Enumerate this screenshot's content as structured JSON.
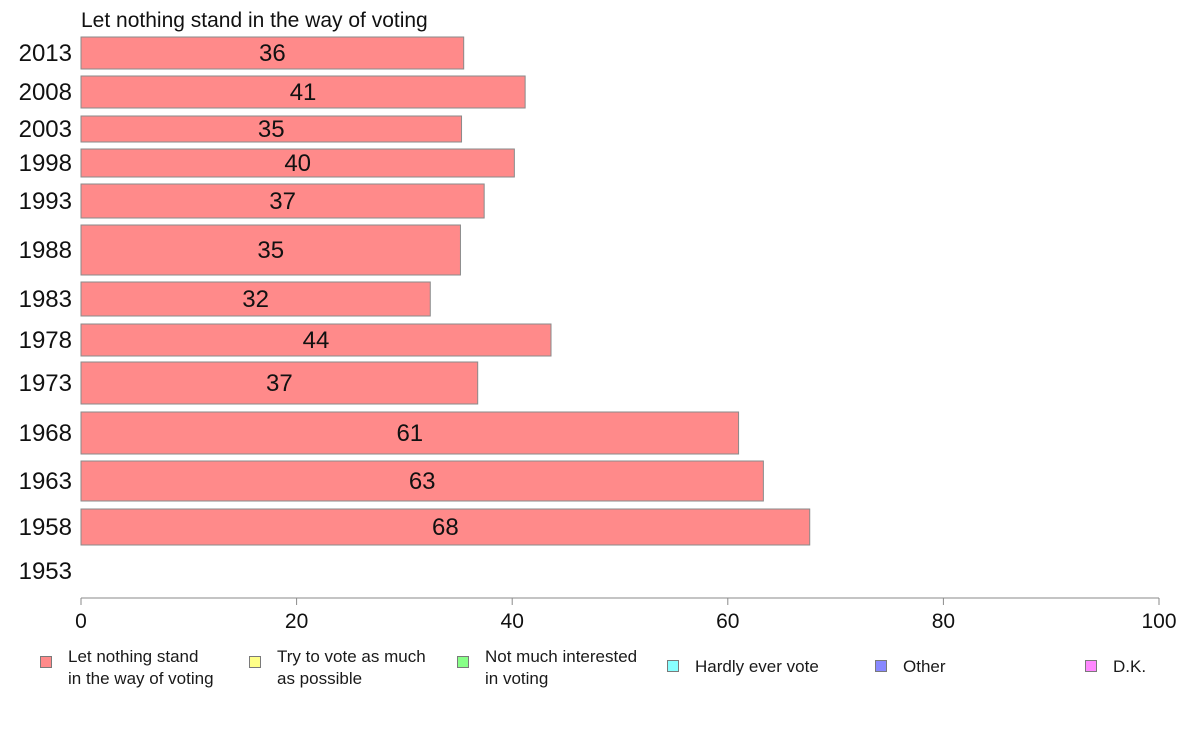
{
  "chart_data": {
    "type": "bar",
    "orientation": "horizontal",
    "title": "Let nothing stand in the way of voting",
    "categories": [
      "2013",
      "2008",
      "2003",
      "1998",
      "1993",
      "1988",
      "1983",
      "1978",
      "1973",
      "1968",
      "1963",
      "1958",
      "1953"
    ],
    "series": [
      {
        "name": "Let nothing stand in the way of voting",
        "values": [
          35.5,
          41.2,
          35.3,
          40.2,
          37.4,
          35.2,
          32.4,
          43.6,
          36.8,
          61,
          63.3,
          67.6,
          null
        ],
        "labels": [
          "36",
          "41",
          "35",
          "40",
          "37",
          "35",
          "32",
          "44",
          "37",
          "61",
          "63",
          "68",
          ""
        ]
      }
    ],
    "xlim": [
      0,
      100
    ],
    "xticks": [
      0,
      20,
      40,
      60,
      80,
      100
    ],
    "grid": false,
    "colors": {
      "bar_fill": "#ff8a8a",
      "bar_stroke": "#8a8a8a",
      "axis": "#8a8a8a"
    },
    "legend": {
      "placement": "bottom",
      "items": [
        {
          "label": "Let nothing stand\nin the way of voting",
          "color": "#ff8a8a"
        },
        {
          "label": "Try to vote as much\nas possible",
          "color": "#ffff88"
        },
        {
          "label": "Not much interested\nin voting",
          "color": "#88ff88"
        },
        {
          "label": "Hardly ever vote",
          "color": "#88ffff"
        },
        {
          "label": "Other",
          "color": "#8888ff"
        },
        {
          "label": "D.K.",
          "color": "#ff88ff"
        }
      ]
    }
  }
}
